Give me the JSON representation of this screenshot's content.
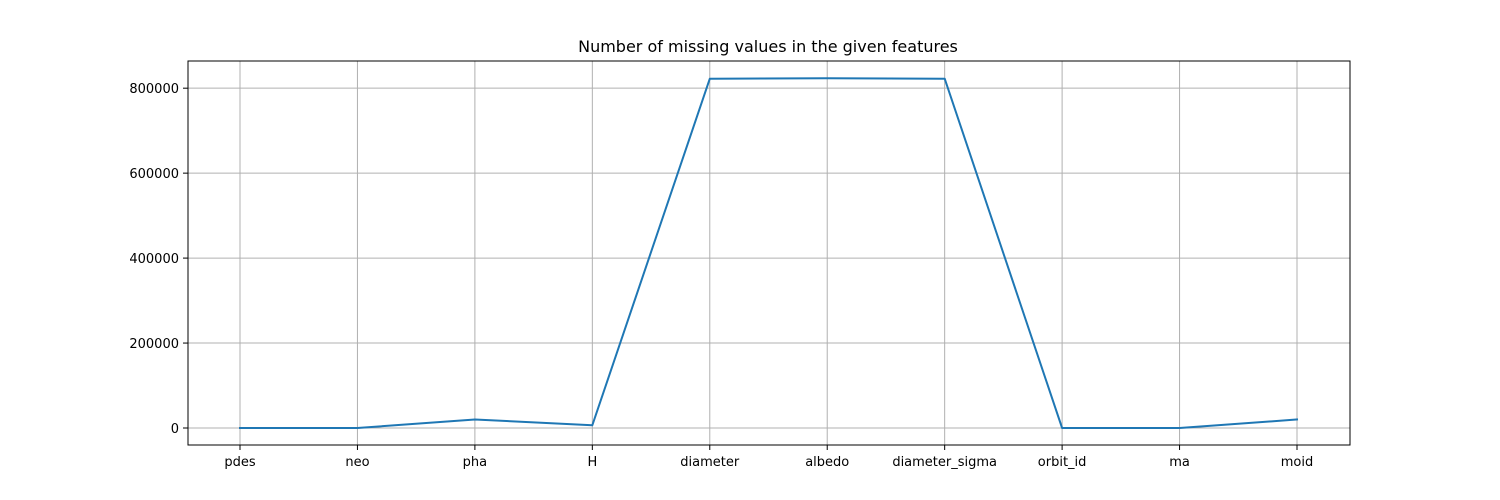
{
  "chart_data": {
    "type": "line",
    "title": "Number of missing values in the given features",
    "xlabel": "",
    "ylabel": "",
    "categories": [
      "pdes",
      "neo",
      "pha",
      "H",
      "diameter",
      "albedo",
      "diameter_sigma",
      "orbit_id",
      "ma",
      "moid"
    ],
    "series": [
      {
        "values": [
          0,
          4,
          19921,
          6263,
          822315,
          823421,
          822443,
          0,
          1,
          19921
        ]
      }
    ],
    "y_ticks": [
      0,
      200000,
      400000,
      600000,
      800000
    ],
    "y_tick_labels": [
      "0",
      "200000",
      "400000",
      "600000",
      "800000"
    ],
    "ylim": [
      -40000,
      864000
    ],
    "grid": true,
    "legend": "none",
    "line_color": "#1f77b4",
    "grid_color": "#b0b0b0"
  }
}
